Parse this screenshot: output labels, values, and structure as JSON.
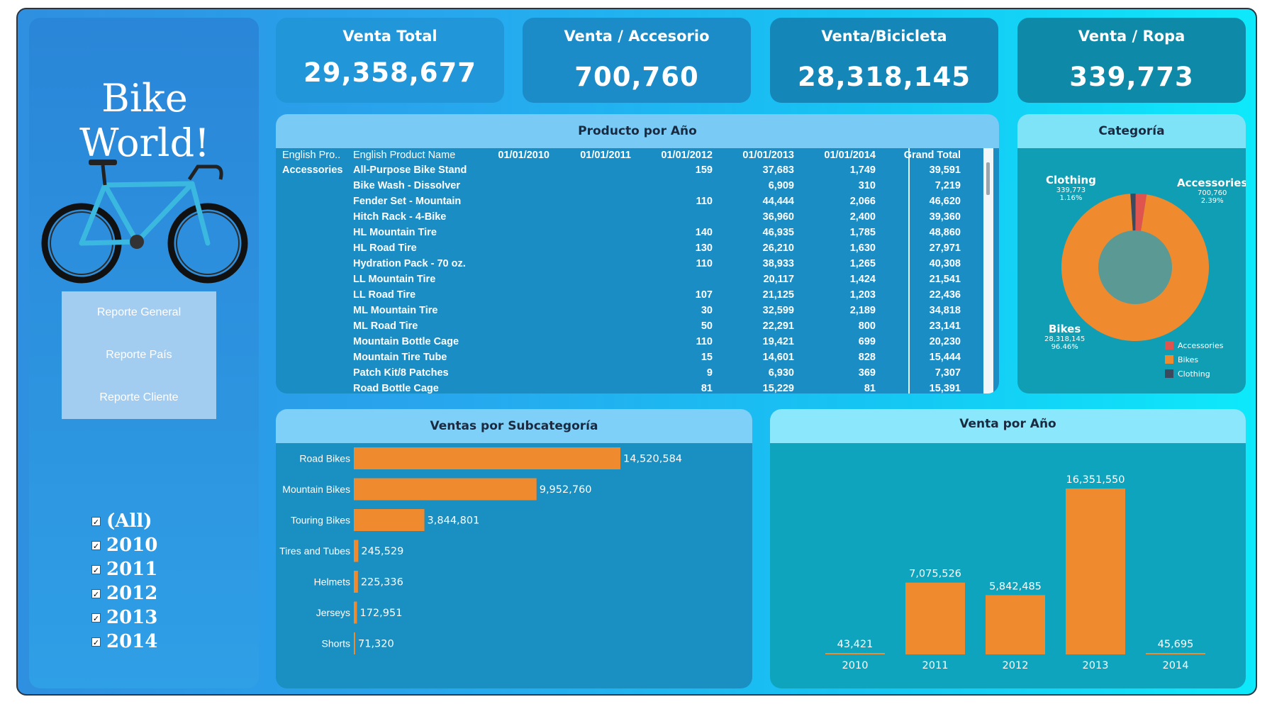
{
  "sidebar": {
    "title": "Bike World!",
    "nav": [
      "Reporte General",
      "Reporte País",
      "Reporte Cliente"
    ],
    "years": [
      "(All)",
      "2010",
      "2011",
      "2012",
      "2013",
      "2014"
    ]
  },
  "kpis": [
    {
      "title": "Venta Total",
      "value": "29,358,677"
    },
    {
      "title": "Venta / Accesorio",
      "value": "700,760"
    },
    {
      "title": "Venta/Bicicleta",
      "value": "28,318,145"
    },
    {
      "title": "Venta / Ropa",
      "value": "339,773"
    }
  ],
  "product_table": {
    "title": "Producto por Año",
    "headers": [
      "English Pro..",
      "English Product Name",
      "01/01/2010",
      "01/01/2011",
      "01/01/2012",
      "01/01/2013",
      "01/01/2014",
      "Grand Total"
    ],
    "group": "Accessories",
    "rows": [
      [
        "All-Purpose Bike Stand",
        "",
        "",
        "159",
        "37,683",
        "1,749",
        "39,591"
      ],
      [
        "Bike Wash - Dissolver",
        "",
        "",
        "",
        "6,909",
        "310",
        "7,219"
      ],
      [
        "Fender Set - Mountain",
        "",
        "",
        "110",
        "44,444",
        "2,066",
        "46,620"
      ],
      [
        "Hitch Rack - 4-Bike",
        "",
        "",
        "",
        "36,960",
        "2,400",
        "39,360"
      ],
      [
        "HL Mountain Tire",
        "",
        "",
        "140",
        "46,935",
        "1,785",
        "48,860"
      ],
      [
        "HL Road Tire",
        "",
        "",
        "130",
        "26,210",
        "1,630",
        "27,971"
      ],
      [
        "Hydration Pack - 70 oz.",
        "",
        "",
        "110",
        "38,933",
        "1,265",
        "40,308"
      ],
      [
        "LL Mountain Tire",
        "",
        "",
        "",
        "20,117",
        "1,424",
        "21,541"
      ],
      [
        "LL Road Tire",
        "",
        "",
        "107",
        "21,125",
        "1,203",
        "22,436"
      ],
      [
        "ML Mountain Tire",
        "",
        "",
        "30",
        "32,599",
        "2,189",
        "34,818"
      ],
      [
        "ML Road Tire",
        "",
        "",
        "50",
        "22,291",
        "800",
        "23,141"
      ],
      [
        "Mountain Bottle Cage",
        "",
        "",
        "110",
        "19,421",
        "699",
        "20,230"
      ],
      [
        "Mountain Tire Tube",
        "",
        "",
        "15",
        "14,601",
        "828",
        "15,444"
      ],
      [
        "Patch Kit/8 Patches",
        "",
        "",
        "9",
        "6,930",
        "369",
        "7,307"
      ],
      [
        "Road Bottle Cage",
        "",
        "",
        "81",
        "15,229",
        "81",
        "15,391"
      ]
    ]
  },
  "category": {
    "title": "Categoría",
    "labels": [
      {
        "name": "Clothing",
        "value": "339,773",
        "pct": "1.16%"
      },
      {
        "name": "Accessories",
        "value": "700,760",
        "pct": "2.39%"
      },
      {
        "name": "Bikes",
        "value": "28,318,145",
        "pct": "96.46%"
      }
    ],
    "legend": [
      "Accessories",
      "Bikes",
      "Clothing"
    ],
    "colors": {
      "Accessories": "#e0544f",
      "Bikes": "#f08a2e",
      "Clothing": "#3d4a5e",
      "hole": "#5b9a94"
    }
  },
  "chart_data": [
    {
      "type": "bar",
      "orientation": "horizontal",
      "title": "Ventas por Subcategoría",
      "categories": [
        "Road Bikes",
        "Mountain Bikes",
        "Touring Bikes",
        "Tires and Tubes",
        "Helmets",
        "Jerseys",
        "Shorts"
      ],
      "values": [
        14520584,
        9952760,
        3844801,
        245529,
        225336,
        172951,
        71320
      ],
      "labels": [
        "14,520,584",
        "9,952,760",
        "3,844,801",
        "245,529",
        "225,336",
        "172,951",
        "71,320"
      ],
      "color": "#f08a2e"
    },
    {
      "type": "bar",
      "title": "Venta por Año",
      "categories": [
        "2010",
        "2011",
        "2012",
        "2013",
        "2014"
      ],
      "values": [
        43421,
        7075526,
        5842485,
        16351550,
        45695
      ],
      "labels": [
        "43,421",
        "7,075,526",
        "5,842,485",
        "16,351,550",
        "45,695"
      ],
      "color": "#f08a2e"
    },
    {
      "type": "pie",
      "title": "Categoría",
      "categories": [
        "Accessories",
        "Bikes",
        "Clothing"
      ],
      "values": [
        700760,
        28318145,
        339773
      ]
    }
  ]
}
